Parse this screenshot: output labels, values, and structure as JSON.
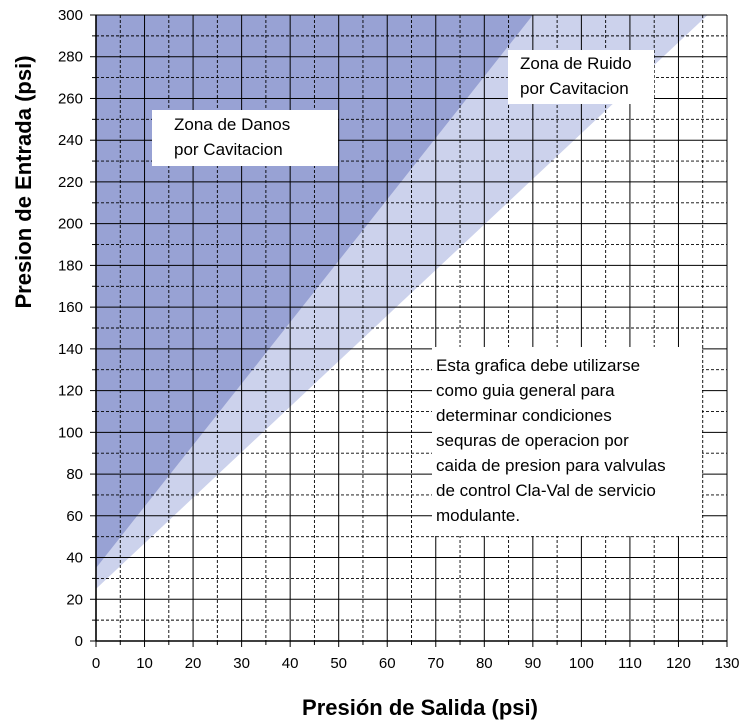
{
  "chart_data": {
    "type": "area",
    "xlabel": "Presión de Salida  (psi)",
    "ylabel": "Presion de Entrada (psi)",
    "xlim": [
      0,
      130
    ],
    "ylim": [
      0,
      300
    ],
    "x_ticks": [
      "0",
      "10",
      "20",
      "30",
      "40",
      "50",
      "60",
      "70",
      "80",
      "90",
      "100",
      "110",
      "120",
      "130"
    ],
    "y_ticks": [
      "0",
      "20",
      "40",
      "60",
      "80",
      "100",
      "120",
      "140",
      "160",
      "180",
      "200",
      "220",
      "240",
      "260",
      "280",
      "300"
    ],
    "grid": true,
    "series": [
      {
        "x": [
          0,
          90
        ],
        "y": [
          35,
          300
        ],
        "fill": "#98a2d4"
      },
      {
        "x": [
          0,
          126
        ],
        "y": [
          25,
          300
        ],
        "fill": "#ccd2ec"
      }
    ],
    "annotations": {
      "damage_zone": [
        "Zona de Danos",
        "por Cavitacion"
      ],
      "noise_zone": [
        "Zona de Ruido",
        "por Cavitacion"
      ],
      "guidance": [
        "Esta grafica debe utilizarse",
        "como guia general para",
        "determinar condiciones",
        "sequras de operacion por",
        "caida de presion para valvulas",
        "de control Cla-Val de servicio",
        "modulante."
      ]
    }
  }
}
